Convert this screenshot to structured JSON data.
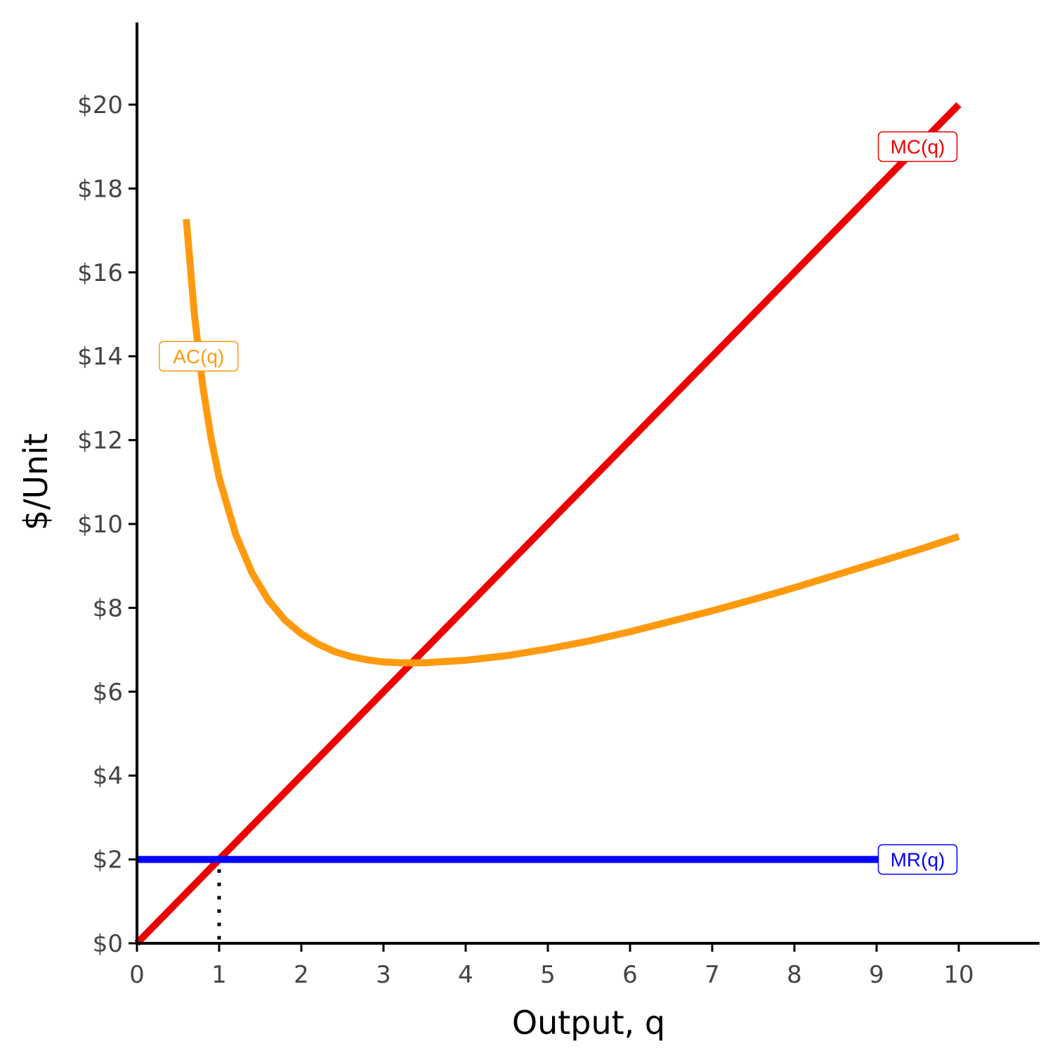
{
  "chart_data": {
    "type": "line",
    "xlabel": "Output, q",
    "ylabel": "$/Unit",
    "xlim": [
      0,
      11
    ],
    "ylim": [
      0,
      22
    ],
    "x_ticks": [
      0,
      1,
      2,
      3,
      4,
      5,
      6,
      7,
      8,
      9,
      10
    ],
    "x_tick_labels": [
      "0",
      "1",
      "2",
      "3",
      "4",
      "5",
      "6",
      "7",
      "8",
      "9",
      "10"
    ],
    "y_ticks": [
      0,
      2,
      4,
      6,
      8,
      10,
      12,
      14,
      16,
      18,
      20
    ],
    "y_tick_labels": [
      "$0",
      "$2",
      "$4",
      "$6",
      "$8",
      "$10",
      "$12",
      "$14",
      "$16",
      "$18",
      "$20"
    ],
    "grid": false,
    "series": [
      {
        "name": "MC(q)",
        "color": "#ee0000",
        "x": [
          0,
          10
        ],
        "y": [
          0,
          20
        ]
      },
      {
        "name": "AC(q)",
        "color": "#ff9a0e",
        "x": [
          0.6,
          0.7,
          0.8,
          0.9,
          1.0,
          1.2,
          1.4,
          1.6,
          1.8,
          2.0,
          2.2,
          2.4,
          2.6,
          2.8,
          3.0,
          3.2,
          3.5,
          4.0,
          4.5,
          5.0,
          5.5,
          6.0,
          6.5,
          7.0,
          7.5,
          8.0,
          8.5,
          9.0,
          9.5,
          10.0
        ],
        "y": [
          17.27,
          14.97,
          13.3,
          12.06,
          11.1,
          9.76,
          8.83,
          8.18,
          7.71,
          7.38,
          7.14,
          6.96,
          6.84,
          6.76,
          6.71,
          6.69,
          6.69,
          6.75,
          6.86,
          7.02,
          7.21,
          7.43,
          7.68,
          7.93,
          8.2,
          8.48,
          8.78,
          9.08,
          9.38,
          9.7
        ]
      },
      {
        "name": "MR(q)",
        "color": "#0000ff",
        "x": [
          0,
          9.8
        ],
        "y": [
          2,
          2
        ]
      }
    ],
    "annotations": [
      {
        "type": "dotted-vline",
        "x": 1,
        "y_from": 0,
        "y_to": 2
      }
    ],
    "labels": [
      {
        "text": "MC(q)",
        "x": 9.5,
        "y": 19,
        "color": "#ee0000"
      },
      {
        "text": "AC(q)",
        "x": 0.75,
        "y": 14,
        "color": "#ff9a0e"
      },
      {
        "text": "MR(q)",
        "x": 9.5,
        "y": 2,
        "color": "#0000ff"
      }
    ]
  }
}
